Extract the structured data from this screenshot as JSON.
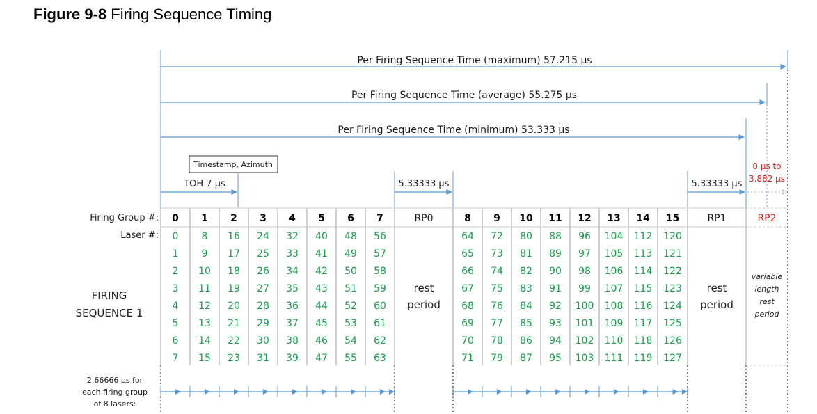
{
  "figure": {
    "number": "Figure 9-8",
    "title": "Firing Sequence Timing"
  },
  "timing": {
    "max_label": "Per Firing Sequence Time (maximum) 57.215 µs",
    "avg_label": "Per Firing Sequence Time (average) 55.275 µs",
    "min_label": "Per Firing Sequence Time (minimum) 53.333 µs",
    "timestamp_label": "Timestamp, Azimuth",
    "toh_label": "TOH 7 µs",
    "rp0_duration": "5.33333 µs",
    "rp1_duration": "5.33333 µs",
    "rp2_range_line1": "0 µs to",
    "rp2_range_line2": "3.882 µs"
  },
  "table": {
    "firing_group_label": "Firing Group #:",
    "laser_label": "Laser #:",
    "sequence_line1": "FIRING",
    "sequence_line2": "SEQUENCE 1",
    "groups_a": [
      {
        "group": "0",
        "lasers": [
          "0",
          "1",
          "2",
          "3",
          "4",
          "5",
          "6",
          "7"
        ]
      },
      {
        "group": "1",
        "lasers": [
          "8",
          "9",
          "10",
          "11",
          "12",
          "13",
          "14",
          "15"
        ]
      },
      {
        "group": "2",
        "lasers": [
          "16",
          "17",
          "18",
          "19",
          "20",
          "21",
          "22",
          "23"
        ]
      },
      {
        "group": "3",
        "lasers": [
          "24",
          "25",
          "26",
          "27",
          "28",
          "29",
          "30",
          "31"
        ]
      },
      {
        "group": "4",
        "lasers": [
          "32",
          "33",
          "34",
          "35",
          "36",
          "37",
          "38",
          "39"
        ]
      },
      {
        "group": "5",
        "lasers": [
          "40",
          "41",
          "42",
          "43",
          "44",
          "45",
          "46",
          "47"
        ]
      },
      {
        "group": "6",
        "lasers": [
          "48",
          "49",
          "50",
          "51",
          "52",
          "53",
          "54",
          "55"
        ]
      },
      {
        "group": "7",
        "lasers": [
          "56",
          "57",
          "58",
          "59",
          "60",
          "61",
          "62",
          "63"
        ]
      }
    ],
    "groups_b": [
      {
        "group": "8",
        "lasers": [
          "64",
          "65",
          "66",
          "67",
          "68",
          "69",
          "70",
          "71"
        ]
      },
      {
        "group": "9",
        "lasers": [
          "72",
          "73",
          "74",
          "75",
          "76",
          "77",
          "78",
          "79"
        ]
      },
      {
        "group": "10",
        "lasers": [
          "80",
          "81",
          "82",
          "83",
          "84",
          "85",
          "86",
          "87"
        ]
      },
      {
        "group": "11",
        "lasers": [
          "88",
          "89",
          "90",
          "91",
          "92",
          "93",
          "94",
          "95"
        ]
      },
      {
        "group": "12",
        "lasers": [
          "96",
          "97",
          "98",
          "99",
          "100",
          "101",
          "102",
          "103"
        ]
      },
      {
        "group": "13",
        "lasers": [
          "104",
          "105",
          "106",
          "107",
          "108",
          "109",
          "110",
          "111"
        ]
      },
      {
        "group": "14",
        "lasers": [
          "112",
          "113",
          "114",
          "115",
          "116",
          "117",
          "118",
          "119"
        ]
      },
      {
        "group": "15",
        "lasers": [
          "120",
          "121",
          "122",
          "123",
          "124",
          "125",
          "126",
          "127"
        ]
      }
    ],
    "rp0": {
      "name": "RP0",
      "line1": "rest",
      "line2": "period"
    },
    "rp1": {
      "name": "RP1",
      "line1": "rest",
      "line2": "period"
    },
    "rp2": {
      "name": "RP2",
      "line1": "variable",
      "line2": "length",
      "line3": "rest",
      "line4": "period"
    }
  },
  "footer": {
    "line1": "2.66666 µs for",
    "line2": "each firing group",
    "line3": "of 8 lasers:"
  },
  "colors": {
    "arrow": "#5b9bd5",
    "laser_text": "#17a04a",
    "red": "#e0201b",
    "grid": "#a0a0a0"
  }
}
